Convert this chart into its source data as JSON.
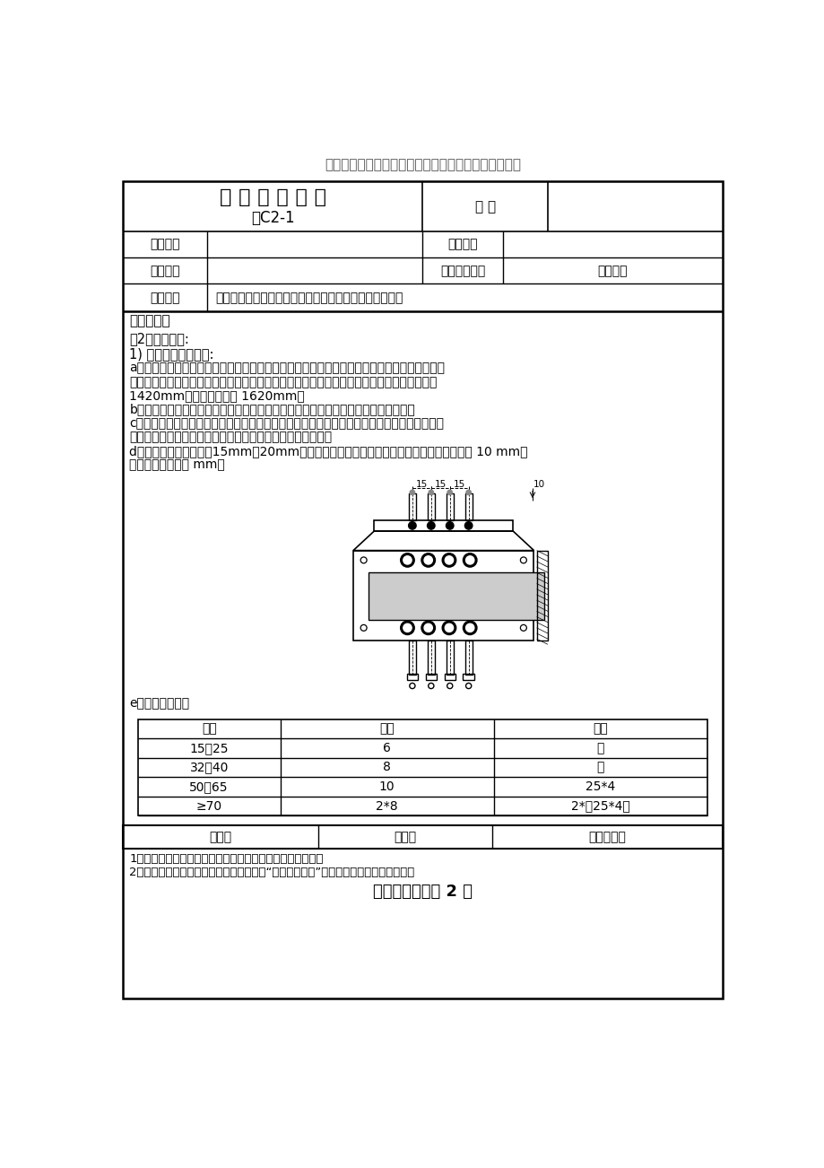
{
  "watermark": "精品文档，仅供学习与交流，如有侵权请联系网站删除",
  "title1": "技 术 交 底 记 录",
  "title2": "表C2-1",
  "biaohao_label": "编 号",
  "row1_label": "工程名称",
  "row1_right_label": "交底日期",
  "row2_label": "施工单位",
  "row2_right_label": "分项工程名称",
  "row2_right_value": "电气安装",
  "row3_label": "交底提要",
  "row3_value": "成套配电柜、控制柜（屏、台）和动力、照明配电箱安装",
  "content_title": "交底内容：",
  "para1": "（2）操作工艺:",
  "para2": "1) 暗装配电箱的固定:",
  "para_a1": "a、在预留孔洞中将筱体找好标高及水平尺寸，稳住筱体后用水泥沙浆添实周边并抄平齐，如筱",
  "para_a2": "底与墙面平齐时，应在外墙固定金属网后再做抄灰，不得直接在筱底直接抄灰。层筱安装高度",
  "para_a3": "1420mm，户筱安装高度 1620mm。",
  "para_b": "b、筱体开孔与导管必须采用与导管管径适配，禁止开长孔，绝对禁止电气焊开长孔。",
  "para_c1": "c、进入配电箱内的导管必须与配电箱垂直，焊接锂管采用内外根母固定，进入配电箱内导管的",
  "para_c2": "丝扣应露出根母一扣，管口光滑无毛刺，不得斜口、马蹄口。",
  "para_d1": "d、管与管之间的距离为15mm～20mm，同一配电箱管与管之间距离相同，导管外边距筱底 10 mm，",
  "para_d2": "具体见图：（单位 mm）",
  "para_e": "e、焊接锂管跨接",
  "table_header": [
    "管径",
    "圆锂",
    "扁锂"
  ],
  "table_rows": [
    [
      "15怠25",
      "6",
      "－"
    ],
    [
      "32怠40",
      "8",
      "－"
    ],
    [
      "50怠65",
      "10",
      "25*4"
    ],
    [
      "≥70",
      "2*8",
      "2*（25*4）"
    ]
  ],
  "bottom_row": [
    "审核人",
    "交底人",
    "接受交底人"
  ],
  "footer1": "1、本表由施工单位填写，交底单位与接受单位各保存一份。",
  "footer2": "2、当做分项工程施工技术交底时，应填写“分项工程名称”栏，其他技术交底可不填写。",
  "footer3": "【精品文档】第 2 页",
  "bg_color": "#ffffff",
  "text_color": "#000000",
  "border_color": "#000000"
}
